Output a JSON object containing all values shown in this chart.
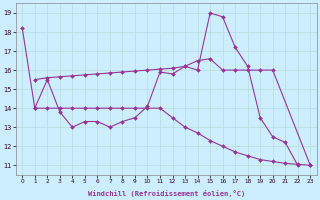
{
  "xlabel": "Windchill (Refroidissement éolien,°C)",
  "background_color": "#cceeff",
  "grid_color": "#b8ddd8",
  "line_color": "#993399",
  "x_ticks": [
    0,
    1,
    2,
    3,
    4,
    5,
    6,
    7,
    8,
    9,
    10,
    11,
    12,
    13,
    14,
    15,
    16,
    17,
    18,
    19,
    20,
    21,
    22,
    23
  ],
  "y_ticks": [
    11,
    12,
    13,
    14,
    15,
    16,
    17,
    18,
    19
  ],
  "ylim": [
    10.5,
    19.5
  ],
  "xlim": [
    -0.5,
    23.5
  ],
  "s1x": [
    0,
    1,
    2,
    3,
    4,
    5,
    6,
    7,
    8,
    9,
    10,
    11,
    12,
    13,
    14,
    15,
    16,
    17,
    18,
    19,
    20,
    21,
    22
  ],
  "s1y": [
    18.2,
    14.0,
    15.5,
    13.8,
    13.0,
    13.3,
    13.3,
    13.0,
    13.3,
    13.5,
    14.1,
    15.9,
    15.8,
    16.2,
    16.0,
    19.0,
    18.8,
    17.2,
    16.2,
    13.5,
    12.5,
    12.2,
    11.0
  ],
  "s2x": [
    1,
    2,
    3,
    4,
    5,
    6,
    7,
    8,
    9,
    10,
    11,
    12,
    13,
    14,
    15,
    16,
    17,
    18,
    19,
    20,
    23
  ],
  "s2y": [
    15.5,
    15.6,
    15.65,
    15.7,
    15.75,
    15.8,
    15.85,
    15.9,
    15.95,
    16.0,
    16.05,
    16.1,
    16.2,
    16.5,
    16.6,
    16.0,
    16.0,
    16.0,
    16.0,
    16.0,
    11.0
  ],
  "s3x": [
    1,
    2,
    3,
    4,
    5,
    6,
    7,
    8,
    9,
    10,
    11,
    12,
    13,
    14,
    15,
    16,
    17,
    18,
    19,
    20,
    21,
    22,
    23
  ],
  "s3y": [
    14.0,
    14.0,
    14.0,
    14.0,
    14.0,
    14.0,
    14.0,
    14.0,
    14.0,
    14.0,
    14.0,
    13.5,
    13.0,
    12.7,
    12.3,
    12.0,
    11.7,
    11.5,
    11.3,
    11.2,
    11.1,
    11.05,
    11.0
  ]
}
